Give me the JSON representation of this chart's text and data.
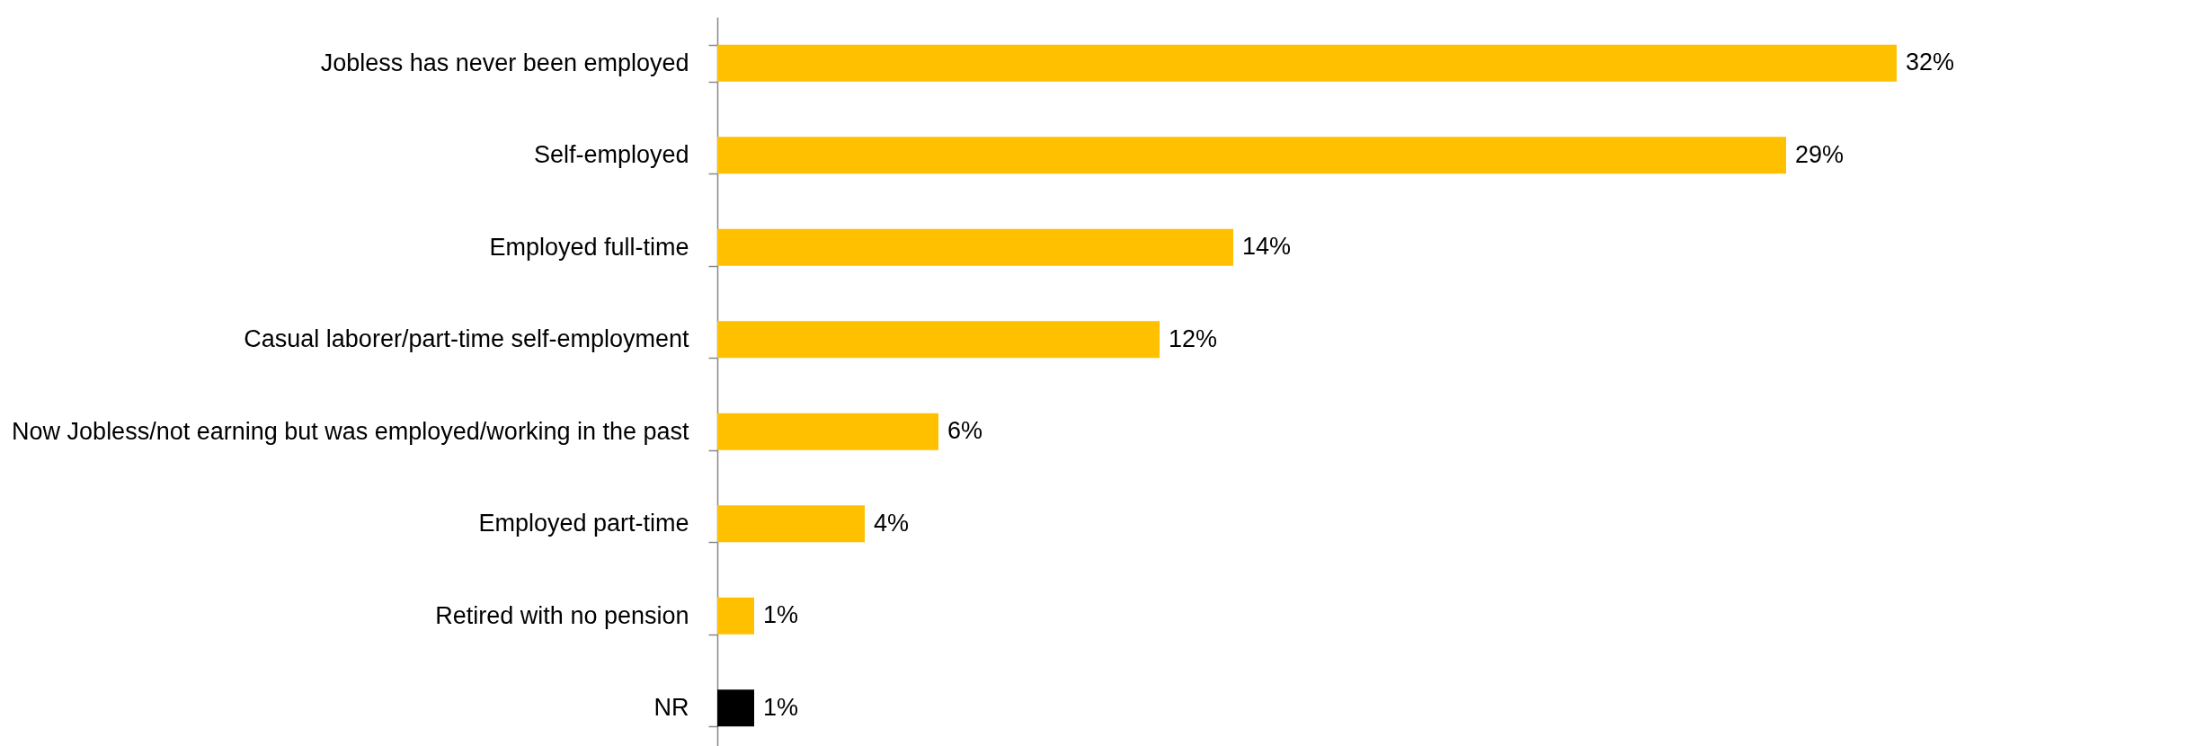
{
  "chart_data": {
    "type": "bar",
    "orientation": "horizontal",
    "categories": [
      "Jobless has never been employed",
      "Self-employed",
      "Employed full-time",
      "Casual laborer/part-time self-employment",
      "Now Jobless/not earning but was employed/working in the past",
      "Employed part-time",
      "Retired with no pension",
      "NR"
    ],
    "values": [
      32,
      29,
      14,
      12,
      6,
      4,
      1,
      1
    ],
    "colors": [
      "#ffc000",
      "#ffc000",
      "#ffc000",
      "#ffc000",
      "#ffc000",
      "#ffc000",
      "#ffc000",
      "#000000"
    ],
    "value_labels": [
      "32%",
      "29%",
      "14%",
      "12%",
      "6%",
      "4%",
      "1%",
      "1%"
    ]
  }
}
